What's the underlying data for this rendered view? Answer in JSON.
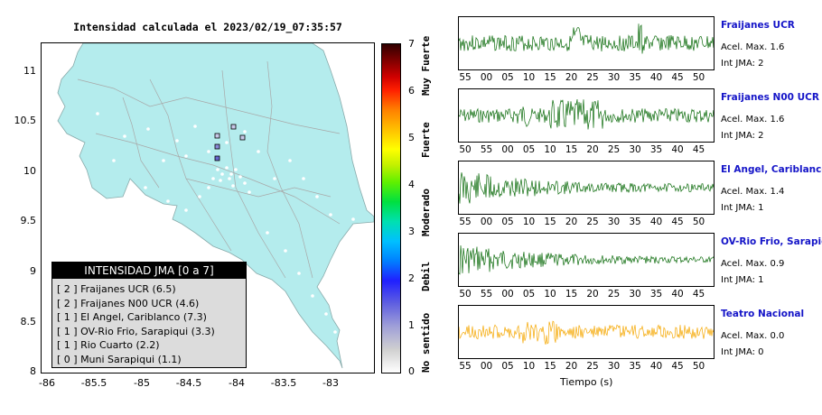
{
  "map": {
    "title": "Intensidad calculada el 2023/02/19_07:35:57",
    "y_ticks": [
      "11",
      "10.5",
      "10",
      "9.5",
      "9",
      "8.5",
      "8"
    ],
    "x_ticks": [
      "-86",
      "-85.5",
      "-85",
      "-84.5",
      "-84",
      "-83.5",
      "-83"
    ]
  },
  "colorbar": {
    "ticks": [
      "7",
      "6",
      "5",
      "4",
      "3",
      "2",
      "1",
      "0"
    ],
    "labels": [
      "Muy Fuerte",
      "Fuerte",
      "Moderado",
      "Debil",
      "No sentido"
    ]
  },
  "legend": {
    "title": "INTENSIDAD JMA [0 a 7]",
    "items": [
      "[ 2 ]  Fraijanes UCR (6.5)",
      "[ 2 ]  Fraijanes N00 UCR (4.6)",
      "[ 1 ]  El Angel, Cariblanco (7.3)",
      "[ 1 ]  OV-Rio Frio, Sarapiqui (3.3)",
      "[ 1 ]  Rio Cuarto (2.2)",
      "[ 0 ]  Muni Sarapiqui (1.1)"
    ]
  },
  "stations": [
    {
      "name": "Fraijanes UCR",
      "accel": "Acel. Max. 1.6",
      "int": "Int JMA: 2",
      "color": "#0b6b0b",
      "ticks": [
        "55",
        "00",
        "05",
        "10",
        "15",
        "20",
        "25",
        "30",
        "35",
        "40",
        "45",
        "50"
      ]
    },
    {
      "name": "Fraijanes N00 UCR",
      "accel": "Acel. Max. 1.6",
      "int": "Int JMA: 2",
      "color": "#0b6b0b",
      "ticks": [
        "50",
        "55",
        "00",
        "05",
        "10",
        "15",
        "20",
        "25",
        "30",
        "35",
        "40",
        "45"
      ]
    },
    {
      "name": "El Angel, Cariblanco",
      "accel": "Acel. Max. 1.4",
      "int": "Int JMA: 1",
      "color": "#0b6b0b",
      "ticks": [
        "55",
        "00",
        "05",
        "10",
        "15",
        "20",
        "25",
        "30",
        "35",
        "40",
        "45",
        "50"
      ]
    },
    {
      "name": "OV-Rio Frio, Sarapiqui",
      "accel": "Acel. Max. 0.9",
      "int": "Int JMA: 1",
      "color": "#0b6b0b",
      "ticks": [
        "50",
        "55",
        "00",
        "05",
        "10",
        "15",
        "20",
        "25",
        "30",
        "35",
        "40",
        "45"
      ]
    },
    {
      "name": "Teatro Nacional",
      "accel": "Acel. Max. 0.0",
      "int": "Int JMA: 0",
      "color": "#f5a700",
      "ticks": [
        "55",
        "00",
        "05",
        "10",
        "15",
        "20",
        "25",
        "30",
        "35",
        "40",
        "45",
        "50"
      ]
    }
  ],
  "xaxis_label": "Tiempo (s)"
}
